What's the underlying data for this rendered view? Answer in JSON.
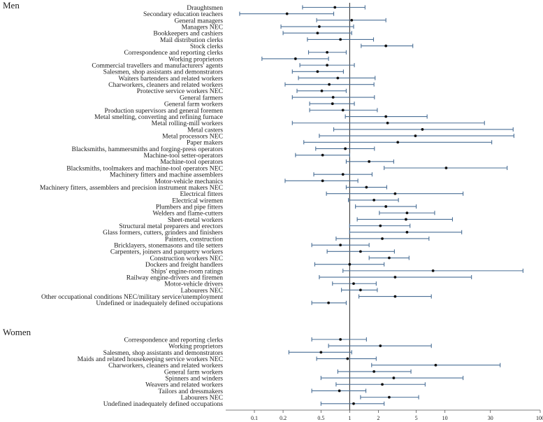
{
  "chart_data": {
    "type": "forest",
    "xscale": "log",
    "xlim": [
      0.05,
      100
    ],
    "ticks": [
      0.1,
      0.2,
      0.5,
      1,
      2,
      5,
      10,
      30,
      100
    ],
    "tick_labels": [
      "0.1",
      "0.2",
      "0.5",
      "1",
      "2",
      "5",
      "10",
      "30",
      "100"
    ],
    "reference_line": 1,
    "colors": {
      "interval": "#4a6f96",
      "point": "#111111",
      "reference": "#222222",
      "axis": "#555555"
    },
    "groups": [
      {
        "name": "Men",
        "rows": [
          {
            "label": "Draughtsmen",
            "est": 0.7,
            "lo": 0.32,
            "hi": 1.45
          },
          {
            "label": "Secondary education teachers",
            "est": 0.22,
            "lo": 0.07,
            "hi": 0.68
          },
          {
            "label": "General managers",
            "est": 1.05,
            "lo": 0.45,
            "hi": 2.4
          },
          {
            "label": "Managers NEC",
            "est": 0.48,
            "lo": 0.19,
            "hi": 1.1
          },
          {
            "label": "Bookkeepers and cashiers",
            "est": 0.46,
            "lo": 0.2,
            "hi": 1.05
          },
          {
            "label": "Mail distribution clerks",
            "est": 0.8,
            "lo": 0.36,
            "hi": 1.78
          },
          {
            "label": "Stock clerks",
            "est": 2.4,
            "lo": 1.32,
            "hi": 4.6
          },
          {
            "label": "Correspondence and reporting clerks",
            "est": 0.58,
            "lo": 0.37,
            "hi": 0.92
          },
          {
            "label": "Working proprietors",
            "est": 0.27,
            "lo": 0.12,
            "hi": 0.6
          },
          {
            "label": "Commercial travellers and manufacturers' agents",
            "est": 0.58,
            "lo": 0.3,
            "hi": 1.12
          },
          {
            "label": "Salesmen, shop assistants and demonstrators",
            "est": 0.46,
            "lo": 0.25,
            "hi": 0.86
          },
          {
            "label": "Waiters bartenders and related workers",
            "est": 0.75,
            "lo": 0.29,
            "hi": 1.85
          },
          {
            "label": "Charworkers, cleaners and related workers",
            "est": 0.61,
            "lo": 0.21,
            "hi": 1.8
          },
          {
            "label": "Protective service workers NEC",
            "est": 0.51,
            "lo": 0.28,
            "hi": 0.92
          },
          {
            "label": "General farmers",
            "est": 0.67,
            "lo": 0.25,
            "hi": 1.82
          },
          {
            "label": "General farm workers",
            "est": 0.66,
            "lo": 0.38,
            "hi": 1.12
          },
          {
            "label": "Production supervisors and general foremen",
            "est": 0.85,
            "lo": 0.38,
            "hi": 1.95
          },
          {
            "label": "Metal smelting, converting and refining furnace",
            "est": 2.4,
            "lo": 0.9,
            "hi": 6.5
          },
          {
            "label": "Metal rolling-mill workers",
            "est": 2.5,
            "lo": 0.25,
            "hi": 26
          },
          {
            "label": "Metal casters",
            "est": 5.8,
            "lo": 0.68,
            "hi": 52
          },
          {
            "label": "Metal processors NEC",
            "est": 4.9,
            "lo": 0.48,
            "hi": 53
          },
          {
            "label": "Paper makers",
            "est": 3.2,
            "lo": 0.33,
            "hi": 31
          },
          {
            "label": "Blacksmiths, hammersmiths and forging-press operators",
            "est": 0.9,
            "lo": 0.44,
            "hi": 1.82
          },
          {
            "label": "Machine-tool setter-operators",
            "est": 0.52,
            "lo": 0.27,
            "hi": 1.0
          },
          {
            "label": "Machine-tool operators",
            "est": 1.6,
            "lo": 0.92,
            "hi": 2.9
          },
          {
            "label": "Blacksmiths, toolmakers and machine-tool operators NEC",
            "est": 10.3,
            "lo": 2.3,
            "hi": 45
          },
          {
            "label": "Machinery fitters and machine assemblers",
            "est": 0.85,
            "lo": 0.42,
            "hi": 1.72
          },
          {
            "label": "Motor-vehicle mechanics",
            "est": 0.52,
            "lo": 0.21,
            "hi": 1.22
          },
          {
            "label": "Machinery fitters, assemblers and precision instrument makers NEC",
            "est": 1.5,
            "lo": 0.92,
            "hi": 2.45
          },
          {
            "label": "Electrical fitters",
            "est": 3.0,
            "lo": 0.57,
            "hi": 15.5
          },
          {
            "label": "Electrical wiremen",
            "est": 1.8,
            "lo": 0.97,
            "hi": 3.25
          },
          {
            "label": "Plumbers and pipe fitters",
            "est": 2.4,
            "lo": 1.15,
            "hi": 5.0
          },
          {
            "label": "Welders and flame-cutters",
            "est": 4.0,
            "lo": 2.05,
            "hi": 7.8
          },
          {
            "label": "Sheet-metal workers",
            "est": 3.9,
            "lo": 1.2,
            "hi": 12
          },
          {
            "label": "Structural metal preparers and erectors",
            "est": 2.1,
            "lo": 1.0,
            "hi": 4.3
          },
          {
            "label": "Glass formers, cutters, grinders and finishers",
            "est": 4.0,
            "lo": 1.0,
            "hi": 15
          },
          {
            "label": "Painters, construction",
            "est": 2.2,
            "lo": 0.72,
            "hi": 6.8
          },
          {
            "label": "Bricklayers, stonemasons and tile setters",
            "est": 0.8,
            "lo": 0.4,
            "hi": 1.6
          },
          {
            "label": "Carpenters, joiners and parquetry workers",
            "est": 1.3,
            "lo": 0.58,
            "hi": 2.95
          },
          {
            "label": "Construction workers NEC",
            "est": 2.6,
            "lo": 1.6,
            "hi": 4.2
          },
          {
            "label": "Dockers and freight handlers",
            "est": 1.0,
            "lo": 0.43,
            "hi": 2.3
          },
          {
            "label": "Ships' engine-room ratings",
            "est": 7.5,
            "lo": 0.85,
            "hi": 66
          },
          {
            "label": "Railway engine-drivers and firemen",
            "est": 3.0,
            "lo": 0.48,
            "hi": 19
          },
          {
            "label": "Motor-vehicle drivers",
            "est": 1.1,
            "lo": 0.66,
            "hi": 1.9
          },
          {
            "label": "Labourers NEC",
            "est": 1.3,
            "lo": 0.82,
            "hi": 1.95
          },
          {
            "label": "Other occupational conditions NEC/military service/unemployment",
            "est": 3.0,
            "lo": 1.25,
            "hi": 7.2
          },
          {
            "label": "Undefined or inadequately defined occupations",
            "est": 0.6,
            "lo": 0.4,
            "hi": 0.92
          }
        ]
      },
      {
        "name": "Women",
        "rows": [
          {
            "label": "Correspondence and reporting clerks",
            "est": 0.8,
            "lo": 0.4,
            "hi": 1.5
          },
          {
            "label": "Working proprietors",
            "est": 2.1,
            "lo": 0.6,
            "hi": 7.2
          },
          {
            "label": "Salesmen, shop assistants and demonstrators",
            "est": 0.5,
            "lo": 0.23,
            "hi": 1.05
          },
          {
            "label": "Maids and related housekeeping service workers NEC",
            "est": 0.95,
            "lo": 0.45,
            "hi": 1.9
          },
          {
            "label": "Charworkers, cleaners and related workers",
            "est": 8.0,
            "lo": 1.7,
            "hi": 38
          },
          {
            "label": "General farm workers",
            "est": 1.8,
            "lo": 0.75,
            "hi": 4.4
          },
          {
            "label": "Spinners and winders",
            "est": 2.9,
            "lo": 0.5,
            "hi": 15.5
          },
          {
            "label": "Weavers and related workers",
            "est": 2.2,
            "lo": 0.72,
            "hi": 6.2
          },
          {
            "label": "Tailors and dressmakers",
            "est": 0.78,
            "lo": 0.4,
            "hi": 1.48
          },
          {
            "label": "Labourers NEC",
            "est": 2.6,
            "lo": 1.3,
            "hi": 5.3
          },
          {
            "label": "Undefined inadequately defined occupations",
            "est": 1.1,
            "lo": 0.5,
            "hi": 2.3
          }
        ]
      }
    ]
  }
}
